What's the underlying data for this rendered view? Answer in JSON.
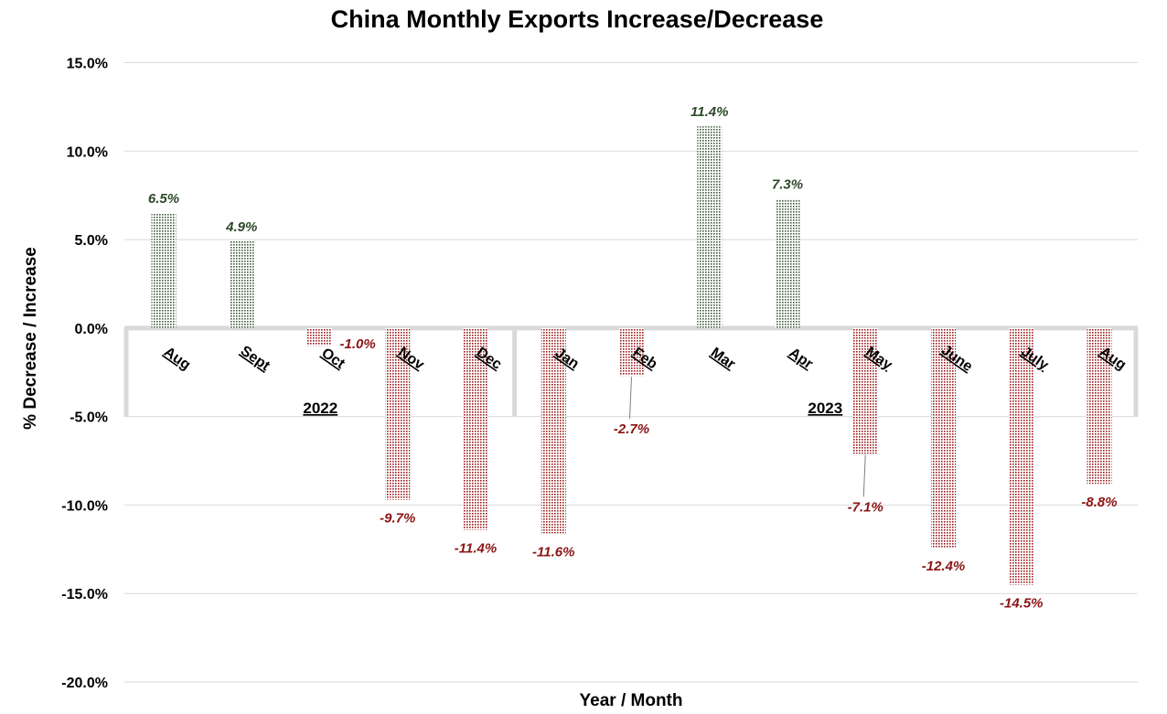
{
  "chart_data": {
    "type": "bar",
    "title": "China Monthly Exports Increase/Decrease",
    "xlabel": "Year / Month",
    "ylabel": "% Decrease / Increase",
    "ylim": [
      -20,
      15
    ],
    "ytick_step": 5,
    "grid": true,
    "legend": "none",
    "categories": [
      "Aug",
      "Sept",
      "Oct",
      "Nov",
      "Dec",
      "Jan",
      "Feb",
      "Mar",
      "Apr",
      "May",
      "June",
      "July",
      "Aug"
    ],
    "values": [
      6.5,
      4.9,
      -1.0,
      -9.7,
      -11.4,
      -11.6,
      -2.7,
      11.4,
      7.3,
      -7.1,
      -12.4,
      -14.5,
      -8.8
    ],
    "data_labels": [
      "6.5%",
      "4.9%",
      "-1.0%",
      "-9.7%",
      "-11.4%",
      "-11.6%",
      "-2.7%",
      "11.4%",
      "7.3%",
      "-7.1%",
      "-12.4%",
      "-14.5%",
      "-8.8%"
    ],
    "groups": [
      {
        "label": "2022",
        "start": 0,
        "end": 4
      },
      {
        "label": "2023",
        "start": 5,
        "end": 12
      }
    ],
    "colors": {
      "positive": "#3f5e3a",
      "negative": "#9b1c1c",
      "positive_label": "#2e4a2a",
      "negative_label": "#8b1414"
    }
  }
}
